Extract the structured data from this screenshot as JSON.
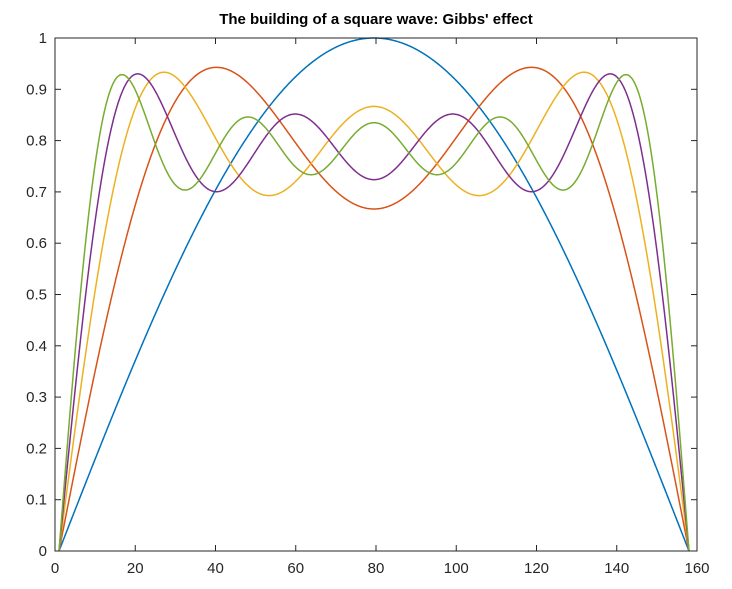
{
  "chart_data": {
    "type": "line",
    "title": "The building of a square wave: Gibbs' effect",
    "xlabel": "",
    "ylabel": "",
    "xlim": [
      0,
      160
    ],
    "ylim": [
      0,
      1
    ],
    "x_ticks": [
      0,
      20,
      40,
      60,
      80,
      100,
      120,
      140,
      160
    ],
    "y_ticks": [
      0,
      0.1,
      0.2,
      0.3,
      0.4,
      0.5,
      0.6,
      0.7,
      0.8,
      0.9,
      1
    ],
    "y_tick_labels": [
      "0",
      "0.1",
      "0.2",
      "0.3",
      "0.4",
      "0.5",
      "0.6",
      "0.7",
      "0.8",
      "0.9",
      "1"
    ],
    "x_tick_labels": [
      "0",
      "20",
      "40",
      "60",
      "80",
      "100",
      "120",
      "140",
      "160"
    ],
    "grid": false,
    "x_range_data": [
      1,
      158
    ],
    "series": [
      {
        "harmonics": 1,
        "color": "#0072BD"
      },
      {
        "harmonics": 2,
        "color": "#D95319"
      },
      {
        "harmonics": 3,
        "color": "#EDB120"
      },
      {
        "harmonics": 4,
        "color": "#7E2F8E"
      },
      {
        "harmonics": 5,
        "color": "#77AC30"
      }
    ]
  }
}
